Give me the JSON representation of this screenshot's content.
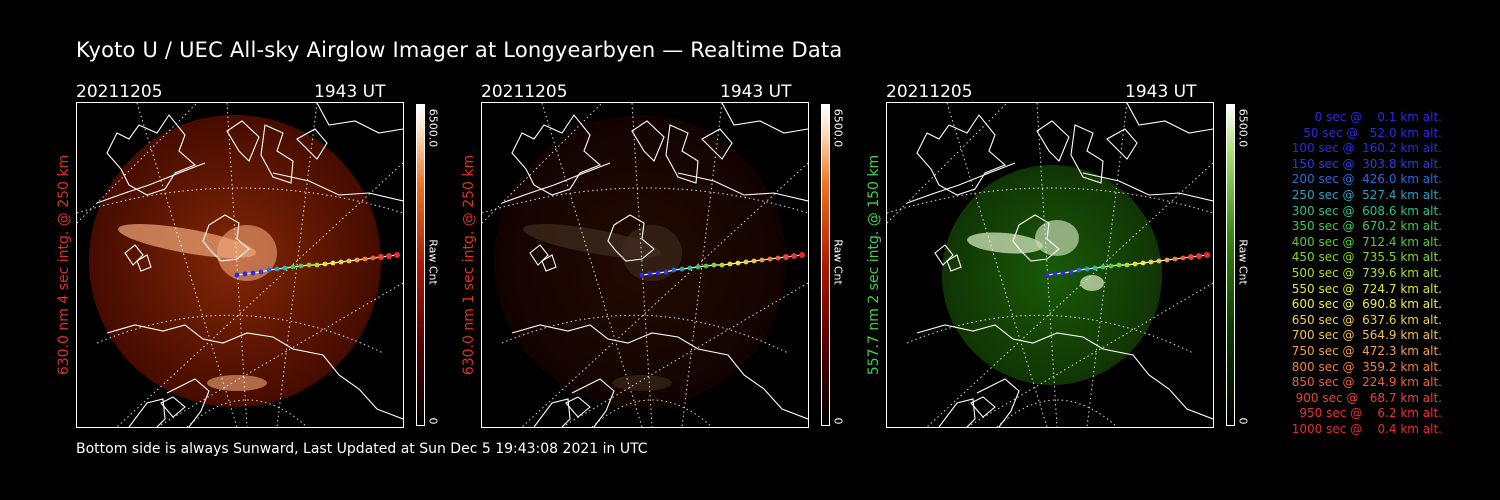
{
  "title": "Kyoto U / UEC All-sky Airglow Imager at Longyearbyen — Realtime Data",
  "footer": "Bottom side is always Sunward, Last Updated at Sun Dec  5 19:43:08 2021 in UTC",
  "panels": [
    {
      "date": "20211205",
      "time": "1943 UT",
      "label": "630.0 nm 4 sec intg. @ 250 km",
      "label_color": "#e0301e",
      "cbar_max": "6500.0",
      "cbar_min": "0",
      "cbar_unit": "Raw Cnt",
      "colormap": "red",
      "brightness": 0.95
    },
    {
      "date": "20211205",
      "time": "1943 UT",
      "label": "630.0 nm 1 sec intg. @ 250 km",
      "label_color": "#e0301e",
      "cbar_max": "6500.0",
      "cbar_min": "0",
      "cbar_unit": "Raw Cnt",
      "colormap": "red",
      "brightness": 0.25
    },
    {
      "date": "20211205",
      "time": "1943 UT",
      "label": "557.7 nm 2 sec intg. @ 150 km",
      "label_color": "#3fd24a",
      "cbar_max": "6500.0",
      "cbar_min": "0",
      "cbar_unit": "Raw Cnt",
      "colormap": "green",
      "brightness": 0.85
    }
  ],
  "trajectory_legend": [
    {
      "text": "   0 sec @    0.1 km alt.",
      "color": "#2a2ae8"
    },
    {
      "text": "  50 sec @   52.0 km alt.",
      "color": "#2a2ae8"
    },
    {
      "text": " 100 sec @  160.2 km alt.",
      "color": "#2a2ae8"
    },
    {
      "text": " 150 sec @  303.8 km alt.",
      "color": "#2a3ae8"
    },
    {
      "text": " 200 sec @  426.0 km alt.",
      "color": "#2a6ae0"
    },
    {
      "text": " 250 sec @  527.4 km alt.",
      "color": "#2aa0c0"
    },
    {
      "text": " 300 sec @  608.6 km alt.",
      "color": "#2ac090"
    },
    {
      "text": " 350 sec @  670.2 km alt.",
      "color": "#3acc50"
    },
    {
      "text": " 400 sec @  712.4 km alt.",
      "color": "#50d030"
    },
    {
      "text": " 450 sec @  735.5 km alt.",
      "color": "#80d820"
    },
    {
      "text": " 500 sec @  739.6 km alt.",
      "color": "#b0e020"
    },
    {
      "text": " 550 sec @  724.7 km alt.",
      "color": "#e0e820"
    },
    {
      "text": " 600 sec @  690.8 km alt.",
      "color": "#f0f040"
    },
    {
      "text": " 650 sec @  637.6 km alt.",
      "color": "#f0d040"
    },
    {
      "text": " 700 sec @  564.9 km alt.",
      "color": "#f0c050"
    },
    {
      "text": " 750 sec @  472.3 km alt.",
      "color": "#f0a040"
    },
    {
      "text": " 800 sec @  359.2 km alt.",
      "color": "#f08030"
    },
    {
      "text": " 850 sec @  224.9 km alt.",
      "color": "#f06030"
    },
    {
      "text": " 900 sec @   68.7 km alt.",
      "color": "#f04030"
    },
    {
      "text": " 950 sec @    6.2 km alt.",
      "color": "#f03030"
    },
    {
      "text": "1000 sec @    0.4 km alt.",
      "color": "#e82a2a"
    }
  ]
}
